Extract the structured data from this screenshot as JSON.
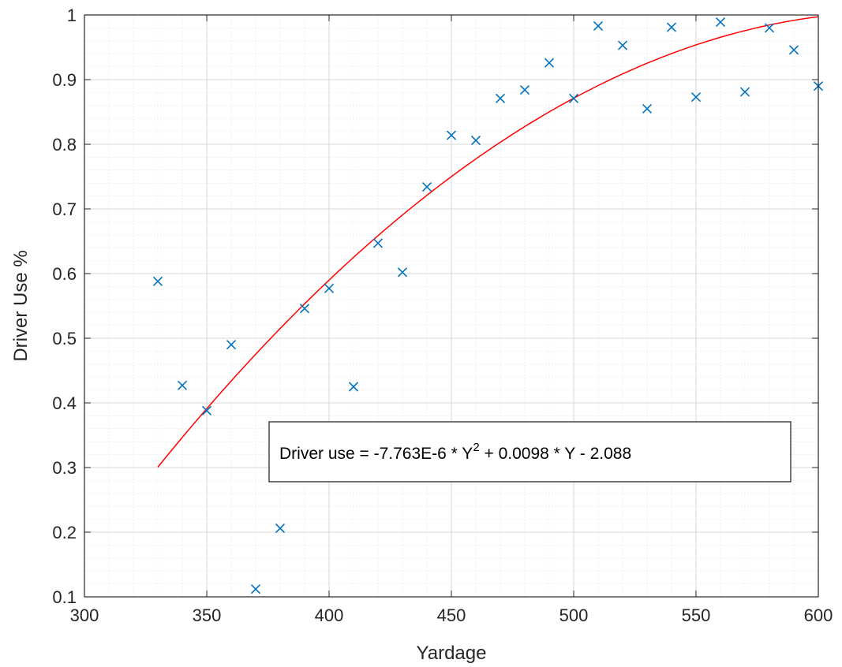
{
  "chart_data": {
    "type": "scatter",
    "xlabel": "Yardage",
    "ylabel": "Driver Use %",
    "xlim": [
      300,
      600
    ],
    "ylim": [
      0.1,
      1
    ],
    "x_ticks": [
      "300",
      "350",
      "400",
      "450",
      "500",
      "550",
      "600"
    ],
    "y_ticks": [
      "0.1",
      "0.2",
      "0.3",
      "0.4",
      "0.5",
      "0.6",
      "0.7",
      "0.8",
      "0.9",
      "1"
    ],
    "grid": true,
    "minor_grid": true,
    "series": [
      {
        "type": "scatter",
        "marker": "x",
        "color": "#0072BD",
        "x": [
          330,
          340,
          350,
          360,
          370,
          380,
          390,
          400,
          410,
          420,
          430,
          440,
          450,
          460,
          470,
          480,
          490,
          500,
          510,
          520,
          530,
          540,
          550,
          560,
          570,
          580,
          590,
          600
        ],
        "y": [
          0.588,
          0.427,
          0.388,
          0.49,
          0.112,
          0.206,
          0.546,
          0.577,
          0.425,
          0.647,
          0.602,
          0.734,
          0.814,
          0.806,
          0.871,
          0.884,
          0.926,
          0.871,
          0.983,
          0.953,
          0.855,
          0.981,
          0.873,
          0.989,
          0.881,
          0.98,
          0.946,
          0.89
        ]
      },
      {
        "type": "line",
        "color": "#FF0000",
        "fit": {
          "a": -7.763e-06,
          "b": 0.0098,
          "c": -2.088,
          "x_range": [
            330,
            600
          ]
        }
      }
    ],
    "annotation": {
      "prefix": "Driver use = -7.763E-6 * Y",
      "superscript": "2",
      "suffix": " + 0.0098 * Y - 2.088"
    }
  }
}
